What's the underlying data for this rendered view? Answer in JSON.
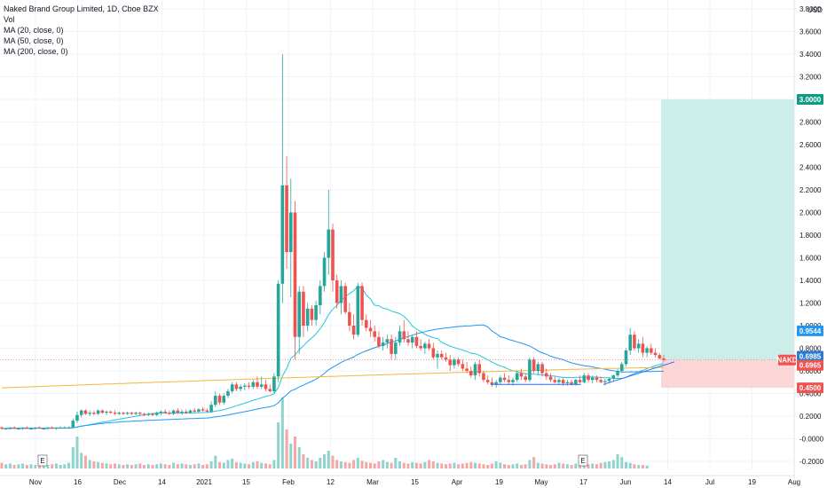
{
  "legend": {
    "title": "Naked Brand Group Limited, 1D, Cboe BZX",
    "vol": "Vol",
    "ma20": "MA (20, close, 0)",
    "ma50": "MA (50, close, 0)",
    "ma200": "MA (200, close, 0)"
  },
  "colors": {
    "up": "#26a69a",
    "down": "#ef5350",
    "ma20": "#26c6da",
    "ma50": "#2196f3",
    "ma200": "#f6b73c",
    "target_fill": "#cceee9",
    "stop_fill": "#fbd6d6",
    "target_tag": "#0f9b8a",
    "stop_tag": "#ef5350",
    "nakd_tag": "#ef5350",
    "vol_up": "#8fd3cc",
    "vol_down": "#f5a6a6",
    "grid": "#f0f3fa"
  },
  "chart_data": {
    "type": "candlestick",
    "symbol": "NAKD",
    "currency": "USD",
    "ylim": [
      -0.2,
      3.8
    ],
    "y_ticks": [
      "3.8000",
      "3.6000",
      "3.4000",
      "3.2000",
      "3.0000",
      "2.8000",
      "2.6000",
      "2.4000",
      "2.2000",
      "2.0000",
      "1.8000",
      "1.6000",
      "1.4000",
      "1.2000",
      "1.0000",
      "0.8000",
      "0.6000",
      "0.4000",
      "0.2000",
      "-0.0000",
      "-0.2000"
    ],
    "x_ticks": [
      "Nov",
      "16",
      "Dec",
      "14",
      "2021",
      "15",
      "Feb",
      "12",
      "Mar",
      "15",
      "Apr",
      "19",
      "May",
      "17",
      "Jun",
      "14",
      "Jul",
      "19",
      "Aug"
    ],
    "earnings_markers": [
      "E",
      "E"
    ],
    "price_tags": [
      {
        "label": "3.0000",
        "value": 3.0,
        "kind": "target"
      },
      {
        "label": "0.9544",
        "value": 0.9544,
        "kind": "ma50"
      },
      {
        "label": "0.6985",
        "value": 0.6985,
        "kind": "ma200"
      },
      {
        "label": "NAKD",
        "value": 0.6965,
        "kind": "symbol"
      },
      {
        "label": "0.6965",
        "value": 0.6965,
        "kind": "last"
      },
      {
        "label": "0.4500",
        "value": 0.45,
        "kind": "stop"
      }
    ],
    "position": {
      "entry": 0.6965,
      "target": 3.0,
      "stop": 0.45
    },
    "candles": [
      [
        0.1,
        0.11,
        0.08,
        0.09
      ],
      [
        0.09,
        0.1,
        0.08,
        0.09
      ],
      [
        0.09,
        0.1,
        0.08,
        0.1
      ],
      [
        0.1,
        0.11,
        0.09,
        0.09
      ],
      [
        0.09,
        0.1,
        0.08,
        0.09
      ],
      [
        0.09,
        0.1,
        0.08,
        0.1
      ],
      [
        0.1,
        0.11,
        0.09,
        0.09
      ],
      [
        0.09,
        0.1,
        0.08,
        0.09
      ],
      [
        0.09,
        0.1,
        0.08,
        0.1
      ],
      [
        0.1,
        0.11,
        0.09,
        0.09
      ],
      [
        0.09,
        0.1,
        0.08,
        0.09
      ],
      [
        0.09,
        0.1,
        0.08,
        0.1
      ],
      [
        0.1,
        0.11,
        0.09,
        0.09
      ],
      [
        0.09,
        0.1,
        0.08,
        0.1
      ],
      [
        0.1,
        0.11,
        0.09,
        0.1
      ],
      [
        0.1,
        0.11,
        0.09,
        0.1
      ],
      [
        0.1,
        0.11,
        0.09,
        0.1
      ],
      [
        0.1,
        0.18,
        0.1,
        0.16
      ],
      [
        0.16,
        0.24,
        0.14,
        0.21
      ],
      [
        0.21,
        0.26,
        0.19,
        0.25
      ],
      [
        0.25,
        0.26,
        0.21,
        0.22
      ],
      [
        0.22,
        0.25,
        0.2,
        0.23
      ],
      [
        0.23,
        0.25,
        0.21,
        0.22
      ],
      [
        0.22,
        0.26,
        0.21,
        0.25
      ],
      [
        0.25,
        0.26,
        0.22,
        0.23
      ],
      [
        0.23,
        0.25,
        0.21,
        0.24
      ],
      [
        0.24,
        0.25,
        0.22,
        0.23
      ],
      [
        0.23,
        0.25,
        0.21,
        0.22
      ],
      [
        0.22,
        0.24,
        0.21,
        0.23
      ],
      [
        0.23,
        0.24,
        0.21,
        0.22
      ],
      [
        0.22,
        0.24,
        0.21,
        0.23
      ],
      [
        0.23,
        0.24,
        0.21,
        0.22
      ],
      [
        0.22,
        0.24,
        0.21,
        0.23
      ],
      [
        0.23,
        0.24,
        0.21,
        0.22
      ],
      [
        0.22,
        0.23,
        0.2,
        0.21
      ],
      [
        0.21,
        0.23,
        0.2,
        0.22
      ],
      [
        0.22,
        0.23,
        0.2,
        0.21
      ],
      [
        0.21,
        0.24,
        0.2,
        0.23
      ],
      [
        0.23,
        0.25,
        0.21,
        0.24
      ],
      [
        0.24,
        0.26,
        0.22,
        0.23
      ],
      [
        0.23,
        0.25,
        0.21,
        0.22
      ],
      [
        0.22,
        0.26,
        0.21,
        0.25
      ],
      [
        0.25,
        0.27,
        0.22,
        0.23
      ],
      [
        0.23,
        0.26,
        0.21,
        0.24
      ],
      [
        0.24,
        0.26,
        0.22,
        0.23
      ],
      [
        0.23,
        0.26,
        0.22,
        0.25
      ],
      [
        0.25,
        0.27,
        0.23,
        0.24
      ],
      [
        0.24,
        0.27,
        0.23,
        0.26
      ],
      [
        0.26,
        0.28,
        0.24,
        0.25
      ],
      [
        0.25,
        0.27,
        0.23,
        0.24
      ],
      [
        0.24,
        0.33,
        0.23,
        0.3
      ],
      [
        0.3,
        0.42,
        0.28,
        0.38
      ],
      [
        0.38,
        0.4,
        0.3,
        0.32
      ],
      [
        0.32,
        0.4,
        0.3,
        0.38
      ],
      [
        0.38,
        0.44,
        0.36,
        0.42
      ],
      [
        0.42,
        0.5,
        0.4,
        0.48
      ],
      [
        0.48,
        0.5,
        0.42,
        0.44
      ],
      [
        0.44,
        0.48,
        0.42,
        0.46
      ],
      [
        0.46,
        0.49,
        0.43,
        0.47
      ],
      [
        0.47,
        0.5,
        0.44,
        0.46
      ],
      [
        0.46,
        0.52,
        0.44,
        0.5
      ],
      [
        0.5,
        0.55,
        0.44,
        0.46
      ],
      [
        0.46,
        0.55,
        0.44,
        0.48
      ],
      [
        0.48,
        0.52,
        0.42,
        0.44
      ],
      [
        0.44,
        0.48,
        0.41,
        0.42
      ],
      [
        0.42,
        0.58,
        0.4,
        0.55
      ],
      [
        0.55,
        1.4,
        0.5,
        1.37
      ],
      [
        1.37,
        3.4,
        1.2,
        2.24
      ],
      [
        2.24,
        2.5,
        1.5,
        1.65
      ],
      [
        1.65,
        2.3,
        1.25,
        2.0
      ],
      [
        2.0,
        2.1,
        0.7,
        0.9
      ],
      [
        0.9,
        1.35,
        0.75,
        1.3
      ],
      [
        1.3,
        1.35,
        0.9,
        1.0
      ],
      [
        1.0,
        1.2,
        0.95,
        1.15
      ],
      [
        1.15,
        1.18,
        1.0,
        1.05
      ],
      [
        1.05,
        1.22,
        1.0,
        1.18
      ],
      [
        1.18,
        1.4,
        1.1,
        1.35
      ],
      [
        1.35,
        1.65,
        1.3,
        1.6
      ],
      [
        1.6,
        2.2,
        1.45,
        1.85
      ],
      [
        1.85,
        1.9,
        1.3,
        1.4
      ],
      [
        1.4,
        1.45,
        1.15,
        1.2
      ],
      [
        1.2,
        1.4,
        1.1,
        1.35
      ],
      [
        1.35,
        1.38,
        1.1,
        1.12
      ],
      [
        1.12,
        1.2,
        0.95,
        1.0
      ],
      [
        1.0,
        1.1,
        0.88,
        0.92
      ],
      [
        0.92,
        1.38,
        0.9,
        1.35
      ],
      [
        1.35,
        1.38,
        1.0,
        1.05
      ],
      [
        1.05,
        1.1,
        0.95,
        0.98
      ],
      [
        0.98,
        1.05,
        0.9,
        0.95
      ],
      [
        0.95,
        1.0,
        0.86,
        0.9
      ],
      [
        0.9,
        0.95,
        0.8,
        0.82
      ],
      [
        0.82,
        0.9,
        0.78,
        0.85
      ],
      [
        0.85,
        0.92,
        0.8,
        0.88
      ],
      [
        0.88,
        0.92,
        0.7,
        0.75
      ],
      [
        0.75,
        0.9,
        0.7,
        0.85
      ],
      [
        0.85,
        1.0,
        0.82,
        0.95
      ],
      [
        0.95,
        1.05,
        0.85,
        0.88
      ],
      [
        0.88,
        0.95,
        0.82,
        0.85
      ],
      [
        0.85,
        0.92,
        0.8,
        0.9
      ],
      [
        0.9,
        0.95,
        0.8,
        0.82
      ],
      [
        0.82,
        0.88,
        0.78,
        0.8
      ],
      [
        0.8,
        0.86,
        0.75,
        0.84
      ],
      [
        0.84,
        0.88,
        0.78,
        0.8
      ],
      [
        0.8,
        0.85,
        0.7,
        0.72
      ],
      [
        0.72,
        0.78,
        0.62,
        0.75
      ],
      [
        0.75,
        0.78,
        0.7,
        0.72
      ],
      [
        0.72,
        0.76,
        0.68,
        0.7
      ],
      [
        0.7,
        0.74,
        0.6,
        0.65
      ],
      [
        0.65,
        0.72,
        0.62,
        0.7
      ],
      [
        0.7,
        0.72,
        0.64,
        0.66
      ],
      [
        0.66,
        0.7,
        0.6,
        0.62
      ],
      [
        0.62,
        0.68,
        0.58,
        0.6
      ],
      [
        0.6,
        0.64,
        0.54,
        0.56
      ],
      [
        0.56,
        0.68,
        0.52,
        0.66
      ],
      [
        0.66,
        0.7,
        0.55,
        0.58
      ],
      [
        0.58,
        0.6,
        0.5,
        0.52
      ],
      [
        0.52,
        0.56,
        0.48,
        0.5
      ],
      [
        0.5,
        0.54,
        0.46,
        0.48
      ],
      [
        0.48,
        0.52,
        0.45,
        0.5
      ],
      [
        0.5,
        0.56,
        0.48,
        0.54
      ],
      [
        0.54,
        0.58,
        0.5,
        0.52
      ],
      [
        0.52,
        0.56,
        0.48,
        0.5
      ],
      [
        0.5,
        0.54,
        0.47,
        0.52
      ],
      [
        0.52,
        0.6,
        0.5,
        0.58
      ],
      [
        0.58,
        0.62,
        0.52,
        0.55
      ],
      [
        0.55,
        0.58,
        0.5,
        0.52
      ],
      [
        0.52,
        0.72,
        0.5,
        0.7
      ],
      [
        0.7,
        0.72,
        0.58,
        0.6
      ],
      [
        0.6,
        0.68,
        0.56,
        0.66
      ],
      [
        0.66,
        0.68,
        0.55,
        0.58
      ],
      [
        0.58,
        0.62,
        0.52,
        0.55
      ],
      [
        0.55,
        0.58,
        0.5,
        0.52
      ],
      [
        0.52,
        0.55,
        0.49,
        0.5
      ],
      [
        0.5,
        0.54,
        0.48,
        0.52
      ],
      [
        0.52,
        0.54,
        0.47,
        0.49
      ],
      [
        0.49,
        0.52,
        0.47,
        0.5
      ],
      [
        0.5,
        0.52,
        0.47,
        0.48
      ],
      [
        0.48,
        0.53,
        0.47,
        0.52
      ],
      [
        0.52,
        0.56,
        0.49,
        0.5
      ],
      [
        0.5,
        0.58,
        0.49,
        0.56
      ],
      [
        0.56,
        0.58,
        0.5,
        0.52
      ],
      [
        0.52,
        0.56,
        0.49,
        0.54
      ],
      [
        0.54,
        0.56,
        0.5,
        0.52
      ],
      [
        0.52,
        0.55,
        0.49,
        0.5
      ],
      [
        0.5,
        0.53,
        0.47,
        0.51
      ],
      [
        0.51,
        0.54,
        0.49,
        0.53
      ],
      [
        0.53,
        0.57,
        0.51,
        0.56
      ],
      [
        0.56,
        0.62,
        0.54,
        0.6
      ],
      [
        0.6,
        0.68,
        0.58,
        0.66
      ],
      [
        0.66,
        0.8,
        0.64,
        0.78
      ],
      [
        0.78,
        0.98,
        0.74,
        0.92
      ],
      [
        0.92,
        0.95,
        0.78,
        0.8
      ],
      [
        0.8,
        0.88,
        0.76,
        0.84
      ],
      [
        0.84,
        0.9,
        0.72,
        0.76
      ],
      [
        0.76,
        0.82,
        0.72,
        0.8
      ],
      [
        0.8,
        0.84,
        0.74,
        0.76
      ],
      [
        0.76,
        0.8,
        0.72,
        0.74
      ],
      [
        0.74,
        0.76,
        0.7,
        0.71
      ],
      [
        0.71,
        0.74,
        0.68,
        0.6965
      ]
    ],
    "volume": [
      8,
      6,
      7,
      5,
      6,
      7,
      5,
      6,
      5,
      7,
      6,
      5,
      6,
      7,
      5,
      6,
      8,
      30,
      45,
      22,
      18,
      12,
      10,
      9,
      8,
      7,
      6,
      7,
      6,
      5,
      6,
      5,
      6,
      7,
      5,
      6,
      5,
      6,
      7,
      6,
      5,
      8,
      6,
      7,
      6,
      5,
      6,
      7,
      5,
      6,
      10,
      18,
      9,
      8,
      12,
      14,
      9,
      8,
      7,
      6,
      9,
      10,
      8,
      7,
      6,
      12,
      65,
      100,
      55,
      35,
      45,
      30,
      20,
      15,
      12,
      10,
      15,
      20,
      25,
      18,
      12,
      10,
      9,
      8,
      12,
      15,
      11,
      9,
      8,
      7,
      10,
      12,
      9,
      8,
      15,
      10,
      8,
      7,
      9,
      8,
      7,
      9,
      12,
      10,
      8,
      7,
      6,
      7,
      8,
      6,
      7,
      8,
      9,
      8,
      7,
      6,
      5,
      7,
      10,
      8,
      6,
      5,
      6,
      7,
      5,
      6,
      12,
      16,
      8,
      7,
      6,
      5,
      6,
      8,
      7,
      6,
      5,
      7,
      6,
      5,
      6,
      7,
      6,
      8,
      9,
      10,
      12,
      20,
      16,
      9,
      8,
      6,
      5,
      5,
      4
    ]
  }
}
